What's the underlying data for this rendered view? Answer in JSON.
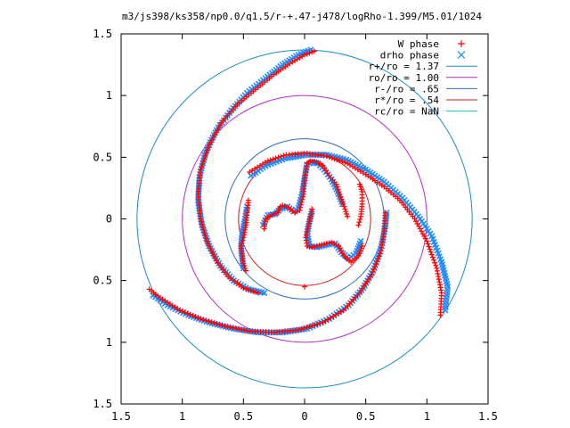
{
  "chart_data": {
    "type": "scatter",
    "title": "m3/js398/ks358/np0.0/q1.5/r-+.47-j478/logRho-1.399/M5.01/1024",
    "xlabel": "",
    "ylabel": "",
    "xlim": [
      -1.5,
      1.5
    ],
    "ylim": [
      -1.5,
      1.5
    ],
    "grid": false,
    "legend_position": "top-right",
    "x_tick_labels": [
      "1.5",
      "1",
      "0.5",
      "0",
      "0.5",
      "1",
      "1.5"
    ],
    "y_tick_labels": [
      "1.5",
      "1",
      "0.5",
      "0",
      "0.5",
      "1",
      "1.5"
    ],
    "tick_values": [
      -1.5,
      -1,
      -0.5,
      0,
      0.5,
      1,
      1.5
    ],
    "series": [
      {
        "name": "W phase",
        "marker": "plus",
        "color": "#ff0000",
        "arms": [
          [
            [
              0.08,
              1.36
            ],
            [
              0.0,
              1.33
            ],
            [
              -0.12,
              1.26
            ],
            [
              -0.25,
              1.17
            ],
            [
              -0.4,
              1.05
            ],
            [
              -0.55,
              0.93
            ],
            [
              -0.68,
              0.78
            ],
            [
              -0.78,
              0.6
            ],
            [
              -0.85,
              0.4
            ],
            [
              -0.87,
              0.2
            ],
            [
              -0.85,
              0.0
            ],
            [
              -0.8,
              -0.18
            ],
            [
              -0.72,
              -0.34
            ],
            [
              -0.62,
              -0.47
            ],
            [
              -0.5,
              -0.56
            ],
            [
              -0.38,
              -0.6
            ]
          ],
          [
            [
              1.11,
              -0.78
            ],
            [
              1.12,
              -0.6
            ],
            [
              1.08,
              -0.4
            ],
            [
              1.0,
              -0.18
            ],
            [
              0.9,
              0.0
            ],
            [
              0.78,
              0.15
            ],
            [
              0.65,
              0.26
            ],
            [
              0.5,
              0.36
            ],
            [
              0.35,
              0.45
            ],
            [
              0.18,
              0.51
            ],
            [
              0.02,
              0.53
            ],
            [
              -0.15,
              0.52
            ],
            [
              -0.3,
              0.47
            ],
            [
              -0.45,
              0.38
            ]
          ],
          [
            [
              -1.27,
              -0.57
            ],
            [
              -1.18,
              -0.64
            ],
            [
              -1.02,
              -0.74
            ],
            [
              -0.85,
              -0.81
            ],
            [
              -0.65,
              -0.87
            ],
            [
              -0.45,
              -0.91
            ],
            [
              -0.25,
              -0.92
            ],
            [
              -0.05,
              -0.9
            ],
            [
              0.15,
              -0.84
            ],
            [
              0.32,
              -0.74
            ],
            [
              0.45,
              -0.6
            ],
            [
              0.55,
              -0.45
            ],
            [
              0.62,
              -0.28
            ],
            [
              0.65,
              -0.1
            ],
            [
              0.66,
              0.05
            ]
          ],
          [
            [
              -0.33,
              -0.08
            ],
            [
              -0.32,
              0.0
            ],
            [
              -0.25,
              0.04
            ],
            [
              -0.22,
              0.05
            ],
            [
              -0.2,
              0.1
            ],
            [
              -0.18,
              0.11
            ],
            [
              -0.13,
              0.09
            ],
            [
              -0.08,
              0.05
            ],
            [
              -0.04,
              0.07
            ],
            [
              -0.01,
              0.2
            ],
            [
              0.0,
              0.33
            ],
            [
              0.02,
              0.45
            ],
            [
              0.05,
              0.47
            ],
            [
              0.1,
              0.46
            ],
            [
              0.15,
              0.43
            ],
            [
              0.2,
              0.35
            ],
            [
              0.26,
              0.28
            ],
            [
              0.3,
              0.16
            ],
            [
              0.33,
              0.08
            ],
            [
              0.35,
              0.02
            ]
          ],
          [
            [
              0.47,
              -0.22
            ],
            [
              0.44,
              -0.3
            ],
            [
              0.38,
              -0.35
            ],
            [
              0.32,
              -0.3
            ],
            [
              0.28,
              -0.22
            ],
            [
              0.22,
              -0.19
            ],
            [
              0.14,
              -0.21
            ],
            [
              0.06,
              -0.23
            ],
            [
              0.02,
              -0.22
            ],
            [
              0.01,
              -0.15
            ],
            [
              0.03,
              -0.06
            ],
            [
              0.05,
              0.02
            ],
            [
              0.06,
              0.08
            ]
          ],
          [
            [
              -0.48,
              -0.42
            ],
            [
              -0.5,
              -0.36
            ],
            [
              -0.51,
              -0.3
            ],
            [
              -0.52,
              -0.22
            ],
            [
              -0.5,
              -0.15
            ],
            [
              -0.48,
              -0.05
            ],
            [
              -0.47,
              0.05
            ],
            [
              -0.46,
              0.15
            ]
          ],
          [
            [
              0.45,
              0.28
            ],
            [
              0.47,
              0.22
            ],
            [
              0.47,
              0.12
            ],
            [
              0.46,
              0.02
            ],
            [
              0.44,
              -0.05
            ]
          ],
          [
            [
              0.0,
              -0.55
            ]
          ]
        ]
      },
      {
        "name": "drho phase",
        "marker": "cross",
        "color": "#1f8cff",
        "arms": [
          [
            [
              0.05,
              1.37
            ],
            [
              -0.05,
              1.33
            ],
            [
              -0.18,
              1.25
            ],
            [
              -0.32,
              1.14
            ],
            [
              -0.47,
              1.02
            ],
            [
              -0.6,
              0.88
            ],
            [
              -0.72,
              0.72
            ],
            [
              -0.81,
              0.54
            ],
            [
              -0.86,
              0.34
            ],
            [
              -0.87,
              0.15
            ],
            [
              -0.84,
              -0.05
            ],
            [
              -0.78,
              -0.22
            ],
            [
              -0.69,
              -0.38
            ],
            [
              -0.58,
              -0.5
            ],
            [
              -0.46,
              -0.57
            ],
            [
              -0.33,
              -0.6
            ]
          ],
          [
            [
              1.15,
              -0.74
            ],
            [
              1.17,
              -0.55
            ],
            [
              1.12,
              -0.35
            ],
            [
              1.04,
              -0.14
            ],
            [
              0.93,
              0.02
            ],
            [
              0.8,
              0.17
            ],
            [
              0.65,
              0.3
            ],
            [
              0.5,
              0.4
            ],
            [
              0.34,
              0.48
            ],
            [
              0.18,
              0.52
            ],
            [
              0.02,
              0.52
            ],
            [
              -0.16,
              0.49
            ],
            [
              -0.32,
              0.43
            ],
            [
              -0.44,
              0.35
            ]
          ],
          [
            [
              -1.24,
              -0.62
            ],
            [
              -1.12,
              -0.7
            ],
            [
              -0.95,
              -0.78
            ],
            [
              -0.78,
              -0.84
            ],
            [
              -0.58,
              -0.89
            ],
            [
              -0.38,
              -0.92
            ],
            [
              -0.18,
              -0.92
            ],
            [
              0.02,
              -0.89
            ],
            [
              0.2,
              -0.81
            ],
            [
              0.36,
              -0.7
            ],
            [
              0.48,
              -0.56
            ],
            [
              0.57,
              -0.4
            ],
            [
              0.63,
              -0.22
            ],
            [
              0.66,
              -0.06
            ],
            [
              0.67,
              0.05
            ]
          ],
          [
            [
              -0.34,
              -0.05
            ],
            [
              -0.3,
              0.03
            ],
            [
              -0.24,
              0.04
            ],
            [
              -0.2,
              0.08
            ],
            [
              -0.14,
              0.1
            ],
            [
              -0.09,
              0.06
            ],
            [
              -0.05,
              0.09
            ],
            [
              -0.02,
              0.2
            ],
            [
              0.0,
              0.33
            ],
            [
              0.02,
              0.44
            ],
            [
              0.06,
              0.46
            ],
            [
              0.11,
              0.45
            ],
            [
              0.16,
              0.4
            ],
            [
              0.22,
              0.32
            ],
            [
              0.27,
              0.22
            ],
            [
              0.31,
              0.12
            ]
          ],
          [
            [
              0.46,
              -0.18
            ],
            [
              0.42,
              -0.28
            ],
            [
              0.36,
              -0.32
            ],
            [
              0.3,
              -0.27
            ],
            [
              0.25,
              -0.2
            ],
            [
              0.18,
              -0.21
            ],
            [
              0.1,
              -0.23
            ],
            [
              0.04,
              -0.22
            ],
            [
              0.02,
              -0.12
            ],
            [
              0.04,
              -0.02
            ],
            [
              0.06,
              0.06
            ]
          ],
          [
            [
              -0.5,
              -0.4
            ],
            [
              -0.51,
              -0.32
            ],
            [
              -0.52,
              -0.22
            ],
            [
              -0.51,
              -0.12
            ],
            [
              -0.49,
              -0.02
            ],
            [
              -0.47,
              0.1
            ]
          ]
        ]
      }
    ],
    "circles": [
      {
        "name": "r+/ro = 1.37",
        "radius": 1.37,
        "color": "#1a8cc4"
      },
      {
        "name": "ro/ro = 1.00",
        "radius": 1.0,
        "color": "#b030c0"
      },
      {
        "name": "r-/ro = .65",
        "radius": 0.65,
        "color": "#2a70b8"
      },
      {
        "name": "r*/ro = .54",
        "radius": 0.54,
        "color": "#d01818"
      },
      {
        "name": "rc/ro = NaN",
        "radius": null,
        "color": "#20c0c0"
      }
    ]
  }
}
